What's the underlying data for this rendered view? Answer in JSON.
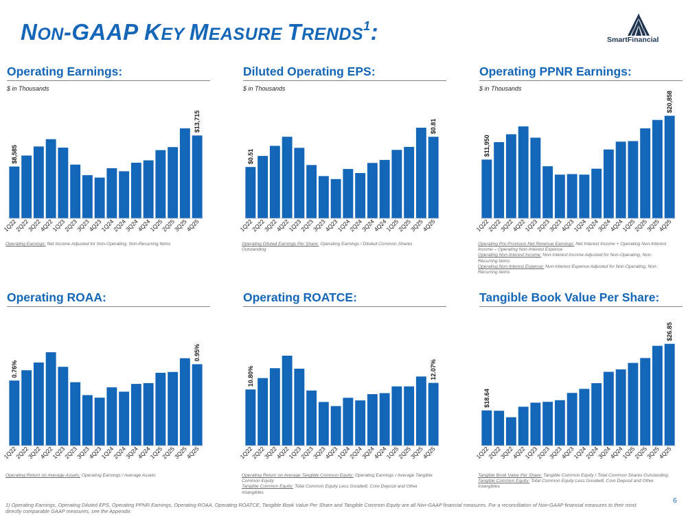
{
  "slide": {
    "title_n": "N",
    "title_on": "ON",
    "title_sep1": "-GAAP ",
    "title_k": "K",
    "title_ey": "EY ",
    "title_m": "M",
    "title_easure": "EASURE ",
    "title_t": "T",
    "title_rends": "RENDS",
    "title_sup": "1",
    "title_colon": ":",
    "company": "SmartFinancial",
    "page_number": "6",
    "footnote": "1) Operating Earnings, Operating Diluted EPS, Operating PPNR Earnings, Operating ROAA, Operating ROATCE, Tangible Book Value Per Share and Tangible Common Equity are all Non-GAAP financial measures. For a reconciliation of Non-GAAP financial measures to their most directly comparable GAAP measures, see the Appendix"
  },
  "colors": {
    "accent": "#1466b8",
    "bar": "#1466b8",
    "logo": "#1f3552"
  },
  "panels": [
    {
      "title": "Operating Earnings:",
      "unit": "$ in Thousands",
      "footnotes": [
        {
          "label": "Operating Earnings:",
          "text": " Net Income Adjusted for Non-Operating, Non-Recurring Items"
        }
      ]
    },
    {
      "title": "Diluted Operating EPS:",
      "unit": "$ in Thousands",
      "footnotes": [
        {
          "label": "Operating Diluted Earnings Per Share:",
          "text": " Operating Earnings / Diluted Common Shares Outstanding"
        }
      ]
    },
    {
      "title": "Operating PPNR Earnings:",
      "unit": "$ in Thousands",
      "footnotes": [
        {
          "label": "Operating Pre-Provision Net Revenue Earnings:",
          "text": " Net Interest Income + Operating Non-Interest Income – Operating Non-Interest Expense"
        },
        {
          "label": "Operating Non-Interest Income:",
          "text": " Non-Interest Income Adjusted for Non-Operating, Non-Recurring Items"
        },
        {
          "label": "Operating Non-Interest Expense:",
          "text": " Non-Interest Expense Adjusted for Non-Operating, Non-Recurring Items"
        }
      ]
    },
    {
      "title": "Operating ROAA:",
      "unit": "",
      "footnotes": [
        {
          "label": "Operating Return on Average Assets:",
          "text": " Operating Earnings / Average Assets"
        }
      ]
    },
    {
      "title": "Operating ROATCE:",
      "unit": "",
      "footnotes": [
        {
          "label": "Operating Return on Average Tangible Common Equity:",
          "text": " Operating Earnings / Average Tangible Common Equity"
        },
        {
          "label": "Tangible Common Equity:",
          "text": " Total Common Equity Less Goodwill, Core Deposit and Other Intangibles"
        }
      ]
    },
    {
      "title": "Tangible Book Value Per Share:",
      "unit": "",
      "footnotes": [
        {
          "label": "Tangible Book Value Per Share:",
          "text": " Tangible Common Equity / Total Common Shares Outstanding"
        },
        {
          "label": "Tangible Common Equity:",
          "text": " Total Common Equity Less Goodwill, Core Deposit and Other Intangibles"
        }
      ]
    }
  ],
  "chart_data": [
    {
      "type": "bar",
      "title": "Operating Earnings:",
      "ylabel": "$ in Thousands",
      "categories": [
        "1Q22",
        "2Q22",
        "3Q22",
        "4Q22",
        "1Q23",
        "2Q23",
        "3Q23",
        "4Q23",
        "1Q24",
        "2Q24",
        "3Q24",
        "4Q24",
        "1Q25",
        "2Q25",
        "3Q25",
        "4Q25"
      ],
      "values": [
        8585,
        10400,
        11900,
        13100,
        11700,
        8900,
        7150,
        6750,
        8300,
        7800,
        9200,
        9600,
        11300,
        11800,
        14900,
        13715
      ],
      "ylim": [
        0,
        17500
      ],
      "data_labels": [
        {
          "index": 0,
          "text": "$8,585"
        },
        {
          "index": 15,
          "text": "$13,715"
        }
      ]
    },
    {
      "type": "bar",
      "title": "Diluted Operating EPS:",
      "ylabel": "$ in Thousands",
      "categories": [
        "1Q22",
        "2Q22",
        "3Q22",
        "4Q22",
        "1Q23",
        "2Q23",
        "3Q23",
        "4Q23",
        "1Q24",
        "2Q24",
        "3Q24",
        "4Q24",
        "1Q25",
        "2Q25",
        "3Q25",
        "4Q25"
      ],
      "values": [
        0.51,
        0.62,
        0.72,
        0.81,
        0.7,
        0.53,
        0.42,
        0.39,
        0.49,
        0.45,
        0.55,
        0.58,
        0.68,
        0.71,
        0.9,
        0.81
      ],
      "ylim": [
        0,
        1.05
      ],
      "data_labels": [
        {
          "index": 0,
          "text": "$0.51"
        },
        {
          "index": 15,
          "text": "$0.81"
        }
      ]
    },
    {
      "type": "bar",
      "title": "Operating PPNR Earnings:",
      "ylabel": "$ in Thousands",
      "categories": [
        "1Q22",
        "2Q22",
        "3Q22",
        "4Q22",
        "1Q23",
        "2Q23",
        "3Q23",
        "4Q23",
        "1Q24",
        "2Q24",
        "3Q24",
        "4Q24",
        "1Q25",
        "2Q25",
        "3Q25",
        "4Q25"
      ],
      "values": [
        11950,
        15500,
        17100,
        18700,
        16400,
        10600,
        8900,
        9000,
        8900,
        10100,
        14000,
        15600,
        15700,
        18300,
        20000,
        20858
      ],
      "ylim": [
        0,
        21500
      ],
      "data_labels": [
        {
          "index": 0,
          "text": "$11,950"
        },
        {
          "index": 15,
          "text": "$20,858"
        }
      ]
    },
    {
      "type": "bar",
      "title": "Operating ROAA:",
      "ylabel": "",
      "categories": [
        "1Q22",
        "2Q22",
        "3Q22",
        "4Q22",
        "1Q23",
        "2Q23",
        "3Q23",
        "4Q23",
        "1Q24",
        "2Q24",
        "3Q24",
        "4Q24",
        "1Q25",
        "2Q25",
        "3Q25",
        "4Q25"
      ],
      "values": [
        0.76,
        0.88,
        0.97,
        1.09,
        0.92,
        0.74,
        0.59,
        0.56,
        0.68,
        0.63,
        0.72,
        0.73,
        0.85,
        0.86,
        1.02,
        0.95
      ],
      "ylim": [
        0,
        1.25
      ],
      "data_labels": [
        {
          "index": 0,
          "text": "0.76%"
        },
        {
          "index": 15,
          "text": "0.95%"
        }
      ]
    },
    {
      "type": "bar",
      "title": "Operating ROATCE:",
      "ylabel": "",
      "categories": [
        "1Q22",
        "2Q22",
        "3Q22",
        "4Q22",
        "1Q23",
        "2Q23",
        "3Q23",
        "4Q23",
        "1Q24",
        "2Q24",
        "3Q24",
        "4Q24",
        "1Q25",
        "2Q25",
        "3Q25",
        "4Q25"
      ],
      "values": [
        10.8,
        13.0,
        14.9,
        17.3,
        14.8,
        10.6,
        8.4,
        7.6,
        9.2,
        8.7,
        9.9,
        10.1,
        11.4,
        11.4,
        13.3,
        12.07
      ],
      "ylim": [
        0,
        20.6
      ],
      "data_labels": [
        {
          "index": 0,
          "text": "10.80%"
        },
        {
          "index": 15,
          "text": "12.07%"
        }
      ]
    },
    {
      "type": "bar",
      "title": "Tangible Book Value Per Share:",
      "ylabel": "",
      "categories": [
        "1Q22",
        "2Q22",
        "3Q22",
        "4Q22",
        "1Q23",
        "2Q23",
        "3Q23",
        "4Q23",
        "1Q24",
        "2Q24",
        "3Q24",
        "4Q24",
        "1Q25",
        "2Q25",
        "3Q25",
        "4Q25"
      ],
      "values": [
        18.64,
        18.6,
        17.8,
        19.1,
        19.6,
        19.7,
        19.9,
        20.8,
        21.3,
        22.0,
        23.4,
        23.7,
        24.5,
        25.1,
        26.6,
        26.85
      ],
      "ylim": [
        14.3,
        27.5
      ],
      "data_labels": [
        {
          "index": 0,
          "text": "$18.64"
        },
        {
          "index": 15,
          "text": "$26.85"
        }
      ]
    }
  ]
}
